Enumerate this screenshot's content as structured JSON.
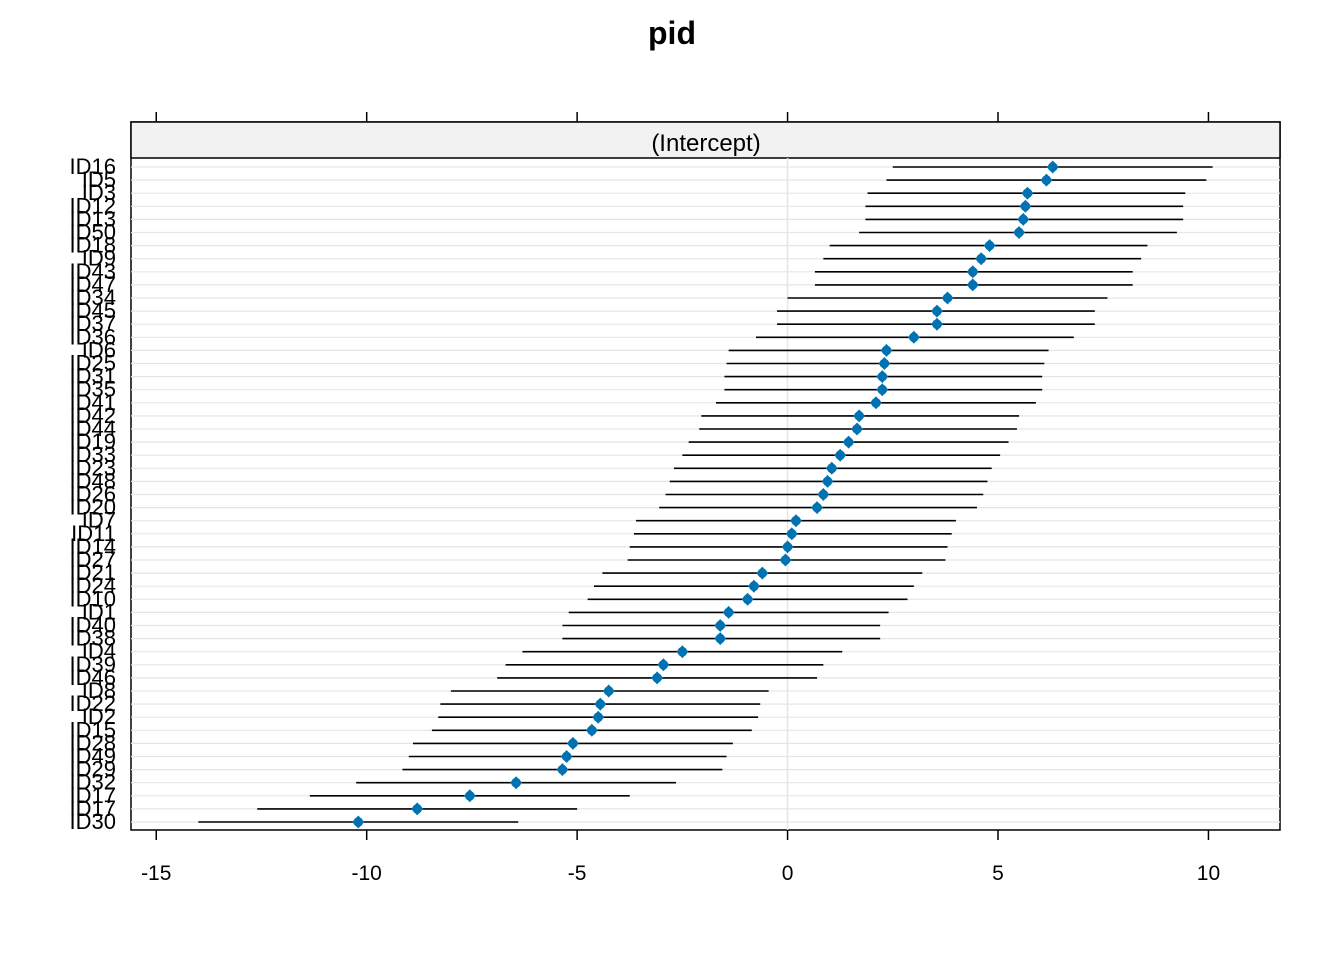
{
  "chart_data": {
    "type": "dotplot-interval",
    "title": "pid",
    "panel_label": "(Intercept)",
    "xlabel": "",
    "ylabel": "",
    "xlim": [
      -15.6,
      11.7
    ],
    "x_ticks": [
      -15,
      -10,
      -5,
      0,
      5,
      10
    ],
    "x_tick_labels": [
      "-15",
      "-10",
      "-5",
      "0",
      "5",
      "10"
    ],
    "grid": true,
    "colors": {
      "point": "#0072B2",
      "interval": "#000000",
      "grid": "#E6E6E6",
      "strip": "#F2F2F2"
    },
    "rows": [
      {
        "label": "ID16",
        "estimate": 6.3,
        "lower": 2.5,
        "upper": 10.1
      },
      {
        "label": "ID5",
        "estimate": 6.15,
        "lower": 2.35,
        "upper": 9.95
      },
      {
        "label": "ID3",
        "estimate": 5.7,
        "lower": 1.9,
        "upper": 9.45
      },
      {
        "label": "ID12",
        "estimate": 5.65,
        "lower": 1.85,
        "upper": 9.4
      },
      {
        "label": "ID13",
        "estimate": 5.6,
        "lower": 1.85,
        "upper": 9.4
      },
      {
        "label": "ID50",
        "estimate": 5.5,
        "lower": 1.7,
        "upper": 9.25
      },
      {
        "label": "ID18",
        "estimate": 4.8,
        "lower": 1.0,
        "upper": 8.55
      },
      {
        "label": "ID9",
        "estimate": 4.6,
        "lower": 0.85,
        "upper": 8.4
      },
      {
        "label": "ID43",
        "estimate": 4.4,
        "lower": 0.65,
        "upper": 8.2
      },
      {
        "label": "ID47",
        "estimate": 4.4,
        "lower": 0.65,
        "upper": 8.2
      },
      {
        "label": "ID34",
        "estimate": 3.8,
        "lower": 0.0,
        "upper": 7.6
      },
      {
        "label": "ID45",
        "estimate": 3.55,
        "lower": -0.25,
        "upper": 7.3
      },
      {
        "label": "ID37",
        "estimate": 3.55,
        "lower": -0.25,
        "upper": 7.3
      },
      {
        "label": "ID36",
        "estimate": 3.0,
        "lower": -0.75,
        "upper": 6.8
      },
      {
        "label": "ID6",
        "estimate": 2.35,
        "lower": -1.4,
        "upper": 6.2
      },
      {
        "label": "ID25",
        "estimate": 2.3,
        "lower": -1.45,
        "upper": 6.1
      },
      {
        "label": "ID31",
        "estimate": 2.25,
        "lower": -1.5,
        "upper": 6.05
      },
      {
        "label": "ID35",
        "estimate": 2.25,
        "lower": -1.5,
        "upper": 6.05
      },
      {
        "label": "ID41",
        "estimate": 2.1,
        "lower": -1.7,
        "upper": 5.9
      },
      {
        "label": "ID42",
        "estimate": 1.7,
        "lower": -2.05,
        "upper": 5.5
      },
      {
        "label": "ID44",
        "estimate": 1.65,
        "lower": -2.1,
        "upper": 5.45
      },
      {
        "label": "ID19",
        "estimate": 1.45,
        "lower": -2.35,
        "upper": 5.25
      },
      {
        "label": "ID33",
        "estimate": 1.25,
        "lower": -2.5,
        "upper": 5.05
      },
      {
        "label": "ID23",
        "estimate": 1.05,
        "lower": -2.7,
        "upper": 4.85
      },
      {
        "label": "ID48",
        "estimate": 0.95,
        "lower": -2.8,
        "upper": 4.75
      },
      {
        "label": "ID26",
        "estimate": 0.85,
        "lower": -2.9,
        "upper": 4.65
      },
      {
        "label": "ID20",
        "estimate": 0.7,
        "lower": -3.05,
        "upper": 4.5
      },
      {
        "label": "ID7",
        "estimate": 0.2,
        "lower": -3.6,
        "upper": 4.0
      },
      {
        "label": "ID11",
        "estimate": 0.1,
        "lower": -3.65,
        "upper": 3.9
      },
      {
        "label": "ID14",
        "estimate": 0.0,
        "lower": -3.75,
        "upper": 3.8
      },
      {
        "label": "ID27",
        "estimate": -0.05,
        "lower": -3.8,
        "upper": 3.75
      },
      {
        "label": "ID21",
        "estimate": -0.6,
        "lower": -4.4,
        "upper": 3.2
      },
      {
        "label": "ID24",
        "estimate": -0.8,
        "lower": -4.6,
        "upper": 3.0
      },
      {
        "label": "ID10",
        "estimate": -0.95,
        "lower": -4.75,
        "upper": 2.85
      },
      {
        "label": "ID1",
        "estimate": -1.4,
        "lower": -5.2,
        "upper": 2.4
      },
      {
        "label": "ID40",
        "estimate": -1.6,
        "lower": -5.35,
        "upper": 2.2
      },
      {
        "label": "ID38",
        "estimate": -1.6,
        "lower": -5.35,
        "upper": 2.2
      },
      {
        "label": "ID4",
        "estimate": -2.5,
        "lower": -6.3,
        "upper": 1.3
      },
      {
        "label": "ID39",
        "estimate": -2.95,
        "lower": -6.7,
        "upper": 0.85
      },
      {
        "label": "ID46",
        "estimate": -3.1,
        "lower": -6.9,
        "upper": 0.7
      },
      {
        "label": "ID8",
        "estimate": -4.25,
        "lower": -8.0,
        "upper": -0.45
      },
      {
        "label": "ID22",
        "estimate": -4.45,
        "lower": -8.25,
        "upper": -0.65
      },
      {
        "label": "ID2",
        "estimate": -4.5,
        "lower": -8.3,
        "upper": -0.7
      },
      {
        "label": "ID15",
        "estimate": -4.65,
        "lower": -8.45,
        "upper": -0.85
      },
      {
        "label": "ID28",
        "estimate": -5.1,
        "lower": -8.9,
        "upper": -1.3
      },
      {
        "label": "ID49",
        "estimate": -5.25,
        "lower": -9.0,
        "upper": -1.45
      },
      {
        "label": "ID29",
        "estimate": -5.35,
        "lower": -9.15,
        "upper": -1.55
      },
      {
        "label": "ID32",
        "estimate": -6.45,
        "lower": -10.25,
        "upper": -2.65
      },
      {
        "label": "ID17",
        "estimate": -7.55,
        "lower": -11.35,
        "upper": -3.75
      },
      {
        "label": "ID30a",
        "display": "ID17",
        "estimate": -8.8,
        "lower": -12.6,
        "upper": -5.0
      },
      {
        "label": "ID30",
        "estimate": -10.2,
        "lower": -14.0,
        "upper": -6.4
      }
    ]
  }
}
